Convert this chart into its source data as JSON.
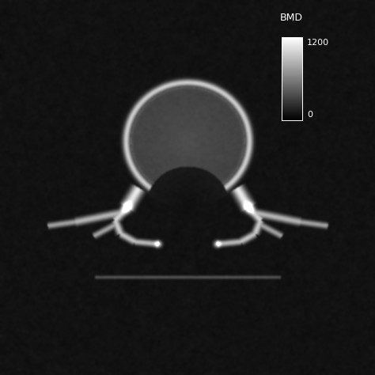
{
  "figsize": [
    4.74,
    4.74
  ],
  "dpi": 100,
  "bg_gray": 0.07,
  "colorbar_label": "BMD",
  "colorbar_max": "1200",
  "colorbar_min": "0",
  "N": 474
}
